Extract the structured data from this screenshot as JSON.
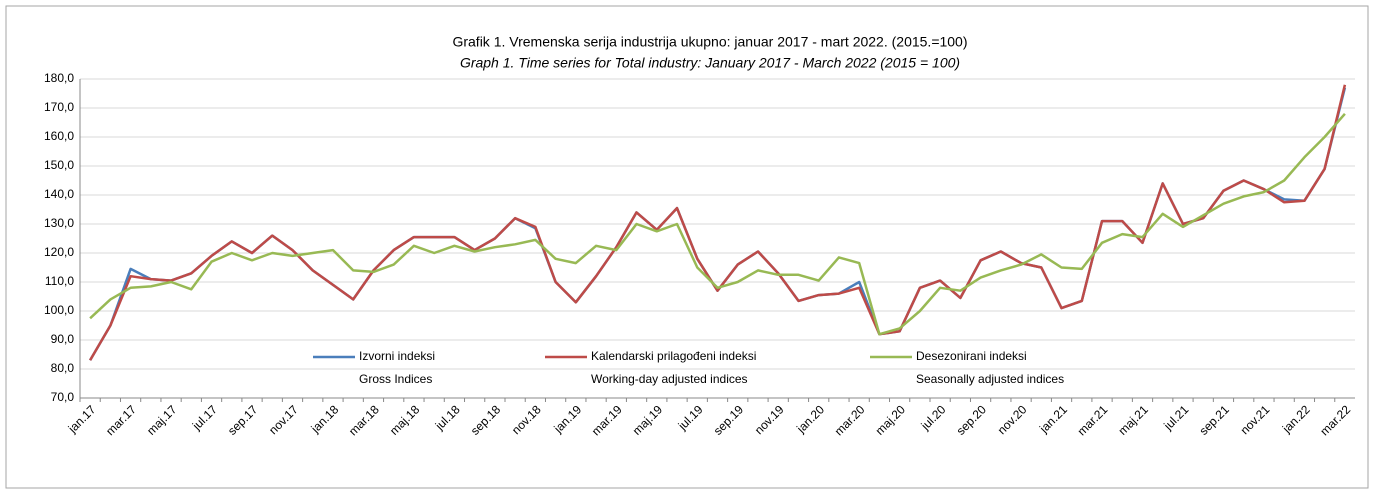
{
  "chart_data": {
    "type": "line",
    "title": "Grafik 1. Vremenska serija industrija ukupno:  januar 2017 -  mart 2022. (2015.=100)",
    "subtitle": "Graph 1. Time series for Total industry:  January 2017 -  March 2022 (2015 = 100)",
    "categories": [
      "jan.17",
      null,
      "mar.17",
      null,
      "maj.17",
      null,
      "jul.17",
      null,
      "sep.17",
      null,
      "nov.17",
      null,
      "jan.18",
      null,
      "mar.18",
      null,
      "maj.18",
      null,
      "jul.18",
      null,
      "sep.18",
      null,
      "nov.18",
      null,
      "jan.19",
      null,
      "mar.19",
      null,
      "maj.19",
      null,
      "jul.19",
      null,
      "sep.19",
      null,
      "nov.19",
      null,
      "jan.20",
      null,
      "mar.20",
      null,
      "maj.20",
      null,
      "jul.20",
      null,
      "sep.20",
      null,
      "nov.20",
      null,
      "jan.21",
      null,
      "mar.21",
      null,
      "maj.21",
      null,
      "jul.21",
      null,
      "sep.21",
      null,
      "nov.21",
      null,
      "jan.22",
      null,
      "mar.22"
    ],
    "series": [
      {
        "name": "Izvorni indeksi",
        "name_en": "Gross Indices",
        "color": "#4a7ebb",
        "values": [
          83,
          95,
          114.5,
          111,
          110.5,
          113,
          119,
          124,
          120,
          126,
          121,
          114,
          109,
          104,
          114,
          121,
          125.5,
          125.5,
          125.5,
          121,
          125,
          132,
          128.5,
          110,
          103,
          112,
          122,
          134,
          128,
          135.5,
          118,
          107,
          116,
          120.5,
          113,
          103.5,
          105.5,
          106,
          110,
          92,
          93,
          108,
          110.5,
          104.5,
          117.5,
          120.5,
          116.5,
          115,
          101,
          103.5,
          131,
          131,
          123.5,
          144,
          130,
          132,
          141.5,
          145,
          142,
          138.5,
          138,
          149,
          177
        ]
      },
      {
        "name": "Kalendarski prilagođeni indeksi",
        "name_en": "Working-day adjusted indices",
        "color": "#be4b48",
        "values": [
          83,
          95,
          112,
          111,
          110.5,
          113,
          119,
          124,
          120,
          126,
          121,
          114,
          109,
          104,
          114,
          121,
          125.5,
          125.5,
          125.5,
          121,
          125,
          132,
          129,
          110,
          103,
          112,
          122,
          134,
          128,
          135.5,
          118,
          107,
          116,
          120.5,
          113,
          103.5,
          105.5,
          106,
          108,
          92,
          93,
          108,
          110.5,
          104.5,
          117.5,
          120.5,
          116.5,
          115,
          101,
          103.5,
          131,
          131,
          123.5,
          144,
          130,
          132,
          141.5,
          145,
          142,
          137.5,
          138,
          149,
          178
        ]
      },
      {
        "name": "Desezonirani indeksi",
        "name_en": "Seasonally adjusted indices",
        "color": "#98b954",
        "values": [
          97.5,
          104,
          108,
          108.5,
          110,
          107.5,
          117,
          120,
          117.5,
          120,
          119,
          120,
          121,
          114,
          113.5,
          116,
          122.5,
          120,
          122.5,
          120.5,
          122,
          123,
          124.5,
          118,
          116.5,
          122.5,
          121,
          130,
          127.5,
          130,
          115,
          108,
          110,
          114,
          112.5,
          112.5,
          110.5,
          118.5,
          116.5,
          92,
          94,
          100,
          108,
          107,
          111.5,
          114,
          116,
          119.5,
          115,
          114.5,
          123.5,
          126.5,
          125.5,
          133.5,
          129,
          133,
          137,
          139.5,
          141,
          145,
          153,
          160,
          168
        ]
      }
    ],
    "ylim": [
      70,
      180
    ],
    "yticks": [
      {
        "value": 70,
        "label": "70,0"
      },
      {
        "value": 80,
        "label": "80,0"
      },
      {
        "value": 90,
        "label": "90,0"
      },
      {
        "value": 100,
        "label": "100,0"
      },
      {
        "value": 110,
        "label": "110,0"
      },
      {
        "value": 120,
        "label": "120,0"
      },
      {
        "value": 130,
        "label": "130,0"
      },
      {
        "value": 140,
        "label": "140,0"
      },
      {
        "value": 150,
        "label": "150,0"
      },
      {
        "value": 160,
        "label": "160,0"
      },
      {
        "value": 170,
        "label": "170,0"
      },
      {
        "value": 180,
        "label": "180,0"
      }
    ],
    "grid": true
  }
}
